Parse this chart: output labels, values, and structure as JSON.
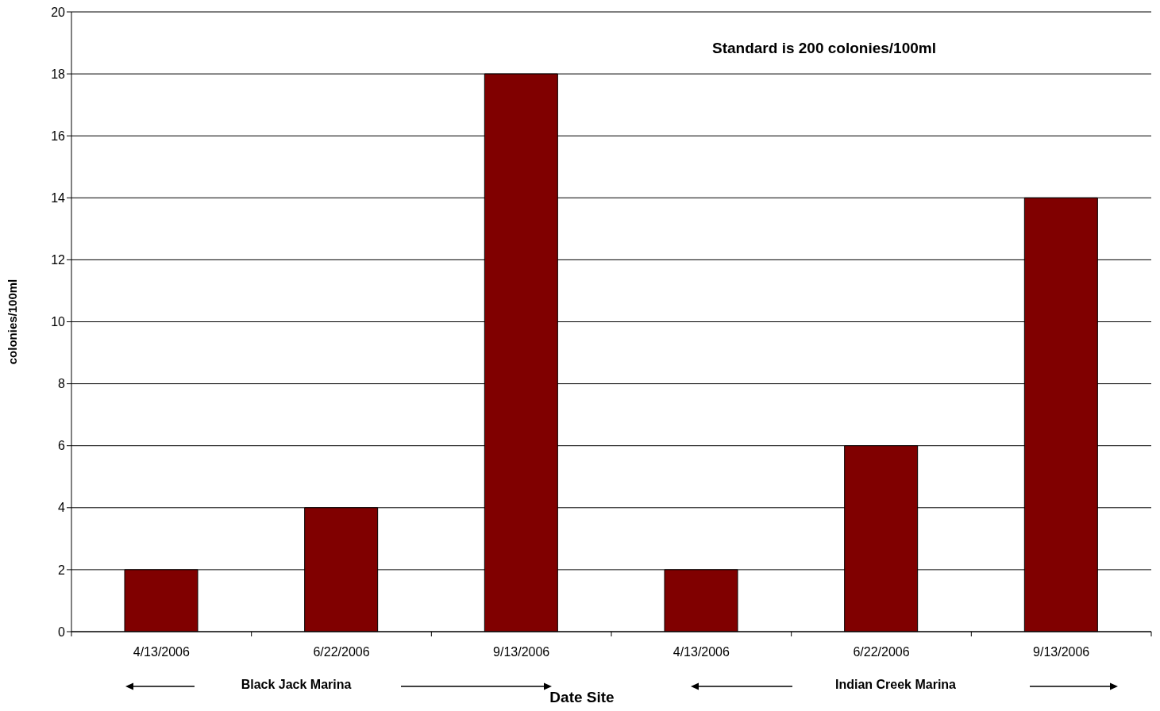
{
  "chart_data": {
    "type": "bar",
    "xlabel": "Date Site",
    "ylabel": "colonies/100ml",
    "categories": [
      "4/13/2006",
      "6/22/2006",
      "9/13/2006",
      "4/13/2006",
      "6/22/2006",
      "9/13/2006"
    ],
    "values": [
      2,
      4,
      18,
      2,
      6,
      14
    ],
    "color": "#800000",
    "ylim": [
      0,
      20
    ],
    "yticks": [
      0,
      2,
      4,
      6,
      8,
      10,
      12,
      14,
      16,
      18,
      20
    ],
    "grid": "y",
    "legend": false,
    "annotations": [
      "Standard is 200 colonies/100ml",
      "Black Jack Marina",
      "Indian Creek Marina"
    ]
  }
}
